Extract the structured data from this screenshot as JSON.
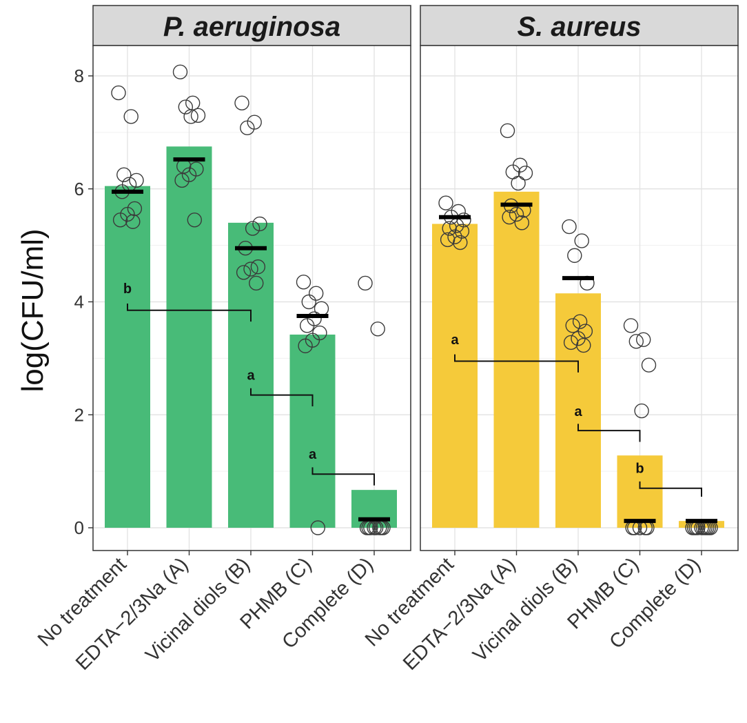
{
  "chart_data": {
    "type": "bar",
    "ylabel": "log(CFU/ml)",
    "xlabel": "",
    "ylim": [
      -0.45,
      8.5
    ],
    "yticks": [
      "0",
      "2",
      "4",
      "6",
      "8"
    ],
    "ytick_values": [
      0,
      2,
      4,
      6,
      8
    ],
    "grid": true,
    "categories": [
      "No treatment",
      "EDTA−2/3Na (A)",
      "Vicinal diols (B)",
      "PHMB (C)",
      "Complete (D)"
    ],
    "colors": {
      "P. aeruginosa": "#48bb78",
      "S. aureus": "#f5ca3a"
    },
    "panels": [
      {
        "title": "P. aeruginosa",
        "bar_values": [
          6.05,
          6.75,
          5.4,
          3.42,
          0.67
        ],
        "median_values": [
          5.95,
          6.52,
          4.95,
          3.75,
          0.15
        ],
        "points": [
          [
            7.7,
            7.28,
            6.25,
            6.15,
            6.08,
            5.95,
            5.65,
            5.55,
            5.45,
            5.42
          ],
          [
            8.07,
            7.52,
            7.45,
            7.3,
            7.28,
            6.4,
            6.35,
            6.25,
            6.15,
            5.45
          ],
          [
            7.52,
            7.18,
            7.08,
            5.38,
            5.3,
            4.95,
            4.62,
            4.58,
            4.52,
            4.33
          ],
          [
            4.35,
            4.15,
            4.0,
            3.88,
            3.7,
            3.58,
            3.45,
            3.32,
            3.22,
            0.0
          ],
          [
            4.33,
            3.52,
            0.0,
            0.0,
            0.0,
            0.0,
            0.0,
            0.0,
            0.0,
            0.0
          ]
        ],
        "comparisons": [
          {
            "from": 0,
            "to": 2,
            "label": "b",
            "y_left": 3.85,
            "y_right": 3.65,
            "label_y": 4.15
          },
          {
            "from": 2,
            "to": 3,
            "label": "a",
            "y_left": 2.35,
            "y_right": 2.15,
            "label_y": 2.62
          },
          {
            "from": 3,
            "to": 4,
            "label": "a",
            "y_left": 0.95,
            "y_right": 0.75,
            "label_y": 1.22
          }
        ]
      },
      {
        "title": "S. aureus",
        "bar_values": [
          5.38,
          5.95,
          4.15,
          1.28,
          0.12
        ],
        "median_values": [
          5.5,
          5.72,
          4.42,
          0.12,
          0.12
        ],
        "points": [
          [
            5.75,
            5.6,
            5.5,
            5.45,
            5.35,
            5.3,
            5.25,
            5.15,
            5.1,
            5.05
          ],
          [
            7.03,
            6.42,
            6.3,
            6.28,
            6.1,
            5.7,
            5.62,
            5.55,
            5.5,
            5.4
          ],
          [
            5.33,
            5.08,
            4.82,
            4.33,
            3.65,
            3.58,
            3.48,
            3.35,
            3.28,
            3.23
          ],
          [
            3.58,
            3.33,
            3.3,
            2.88,
            2.07,
            0.0,
            0.0,
            0.0,
            0.0,
            0.0
          ],
          [
            0.0,
            0.0,
            0.0,
            0.0,
            0.0,
            0.0,
            0.0,
            0.0,
            0.0,
            0.0
          ]
        ],
        "comparisons": [
          {
            "from": 0,
            "to": 2,
            "label": "a",
            "y_left": 2.95,
            "y_right": 2.75,
            "label_y": 3.25
          },
          {
            "from": 2,
            "to": 3,
            "label": "a",
            "y_left": 1.72,
            "y_right": 1.52,
            "label_y": 1.98
          },
          {
            "from": 3,
            "to": 4,
            "label": "b",
            "y_left": 0.7,
            "y_right": 0.55,
            "label_y": 0.97
          }
        ]
      }
    ]
  }
}
